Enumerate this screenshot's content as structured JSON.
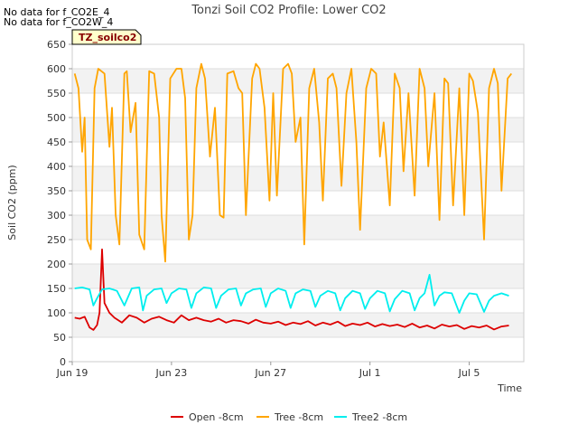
{
  "notes": [
    "No data for f_CO2E_4",
    "No data for f_CO2W_4"
  ],
  "site_tag": "TZ_soilco2",
  "legend_entries": [
    "Open -8cm",
    "Tree -8cm",
    "Tree2 -8cm"
  ],
  "chart_data": {
    "type": "line",
    "title": "Tonzi Soil CO2 Profile: Lower CO2",
    "xlabel": "Time",
    "ylabel": "Soil CO2 (ppm)",
    "xlim": [
      0,
      18.2
    ],
    "ylim": [
      0,
      650
    ],
    "yticks": [
      0,
      50,
      100,
      150,
      200,
      250,
      300,
      350,
      400,
      450,
      500,
      550,
      600,
      650
    ],
    "xtick_labels": [
      {
        "x": 0,
        "label": "Jun 19"
      },
      {
        "x": 4,
        "label": "Jun 23"
      },
      {
        "x": 8,
        "label": "Jun 27"
      },
      {
        "x": 12,
        "label": "Jul 1"
      },
      {
        "x": 16,
        "label": "Jul 5"
      }
    ],
    "series": [
      {
        "name": "Open -8cm",
        "color": "#dd0000",
        "x": [
          0.1,
          0.3,
          0.5,
          0.7,
          0.85,
          1.0,
          1.1,
          1.2,
          1.3,
          1.5,
          1.7,
          2.0,
          2.3,
          2.6,
          2.9,
          3.2,
          3.5,
          3.8,
          4.1,
          4.4,
          4.7,
          5.0,
          5.3,
          5.6,
          5.9,
          6.2,
          6.5,
          6.8,
          7.1,
          7.4,
          7.7,
          8.0,
          8.3,
          8.6,
          8.9,
          9.2,
          9.5,
          9.8,
          10.1,
          10.4,
          10.7,
          11.0,
          11.3,
          11.6,
          11.9,
          12.2,
          12.5,
          12.8,
          13.1,
          13.4,
          13.7,
          14.0,
          14.3,
          14.6,
          14.9,
          15.2,
          15.5,
          15.8,
          16.1,
          16.4,
          16.7,
          17.0,
          17.3,
          17.6
        ],
        "values": [
          90,
          88,
          92,
          70,
          65,
          75,
          100,
          230,
          120,
          100,
          90,
          80,
          95,
          90,
          80,
          88,
          92,
          85,
          80,
          95,
          85,
          90,
          85,
          82,
          88,
          80,
          85,
          83,
          78,
          86,
          80,
          78,
          82,
          75,
          80,
          77,
          83,
          74,
          80,
          76,
          82,
          73,
          78,
          75,
          80,
          72,
          77,
          73,
          76,
          71,
          78,
          70,
          74,
          68,
          76,
          72,
          75,
          67,
          73,
          70,
          74,
          66,
          72,
          74
        ]
      },
      {
        "name": "Tree -8cm",
        "color": "#ffa500",
        "x": [
          0.1,
          0.25,
          0.4,
          0.5,
          0.6,
          0.75,
          0.9,
          1.05,
          1.3,
          1.5,
          1.6,
          1.75,
          1.9,
          2.1,
          2.2,
          2.35,
          2.55,
          2.7,
          2.9,
          3.1,
          3.3,
          3.5,
          3.6,
          3.75,
          3.95,
          4.2,
          4.4,
          4.55,
          4.7,
          4.85,
          5.0,
          5.2,
          5.35,
          5.55,
          5.75,
          5.95,
          6.1,
          6.25,
          6.5,
          6.7,
          6.85,
          7.0,
          7.25,
          7.4,
          7.55,
          7.75,
          7.95,
          8.1,
          8.25,
          8.5,
          8.7,
          8.85,
          9.0,
          9.2,
          9.35,
          9.55,
          9.75,
          9.95,
          10.1,
          10.3,
          10.5,
          10.65,
          10.85,
          11.05,
          11.25,
          11.45,
          11.6,
          11.85,
          12.05,
          12.25,
          12.4,
          12.55,
          12.8,
          13.0,
          13.2,
          13.35,
          13.55,
          13.8,
          14.0,
          14.2,
          14.35,
          14.6,
          14.8,
          15.0,
          15.15,
          15.35,
          15.6,
          15.8,
          16.0,
          16.15,
          16.35,
          16.6,
          16.8,
          17.0,
          17.15,
          17.3,
          17.55,
          17.7
        ],
        "values": [
          590,
          560,
          430,
          500,
          250,
          230,
          560,
          600,
          590,
          440,
          520,
          300,
          240,
          590,
          595,
          470,
          530,
          260,
          230,
          595,
          590,
          500,
          300,
          205,
          580,
          600,
          600,
          540,
          250,
          300,
          560,
          610,
          580,
          420,
          520,
          300,
          295,
          590,
          595,
          560,
          550,
          300,
          580,
          610,
          600,
          520,
          330,
          550,
          340,
          600,
          610,
          590,
          450,
          500,
          240,
          560,
          600,
          490,
          330,
          580,
          590,
          560,
          360,
          550,
          600,
          450,
          270,
          560,
          600,
          590,
          420,
          490,
          320,
          590,
          560,
          390,
          550,
          340,
          600,
          560,
          400,
          550,
          290,
          580,
          570,
          320,
          560,
          300,
          590,
          575,
          510,
          250,
          560,
          600,
          570,
          350,
          580,
          590
        ]
      },
      {
        "name": "Tree2 -8cm",
        "color": "#00eeee",
        "x": [
          0.1,
          0.4,
          0.7,
          0.85,
          1.0,
          1.2,
          1.5,
          1.8,
          2.1,
          2.4,
          2.7,
          2.85,
          3.0,
          3.3,
          3.6,
          3.8,
          4.0,
          4.3,
          4.6,
          4.8,
          5.0,
          5.3,
          5.6,
          5.8,
          6.0,
          6.3,
          6.6,
          6.8,
          7.0,
          7.3,
          7.6,
          7.8,
          8.0,
          8.3,
          8.6,
          8.8,
          9.0,
          9.3,
          9.6,
          9.8,
          10.0,
          10.3,
          10.6,
          10.8,
          11.0,
          11.3,
          11.6,
          11.8,
          12.0,
          12.3,
          12.6,
          12.8,
          13.0,
          13.3,
          13.6,
          13.8,
          14.0,
          14.2,
          14.4,
          14.6,
          14.8,
          15.0,
          15.3,
          15.6,
          15.8,
          16.0,
          16.3,
          16.6,
          16.8,
          17.0,
          17.3,
          17.6
        ],
        "values": [
          150,
          152,
          148,
          115,
          130,
          148,
          150,
          145,
          115,
          150,
          152,
          105,
          135,
          148,
          150,
          120,
          140,
          150,
          148,
          110,
          140,
          152,
          150,
          110,
          135,
          148,
          150,
          115,
          140,
          148,
          150,
          112,
          140,
          150,
          145,
          110,
          140,
          148,
          145,
          112,
          135,
          145,
          140,
          105,
          130,
          145,
          140,
          108,
          130,
          145,
          140,
          103,
          128,
          145,
          140,
          105,
          130,
          140,
          178,
          115,
          135,
          142,
          140,
          100,
          125,
          140,
          138,
          102,
          125,
          135,
          140,
          135
        ]
      }
    ]
  }
}
